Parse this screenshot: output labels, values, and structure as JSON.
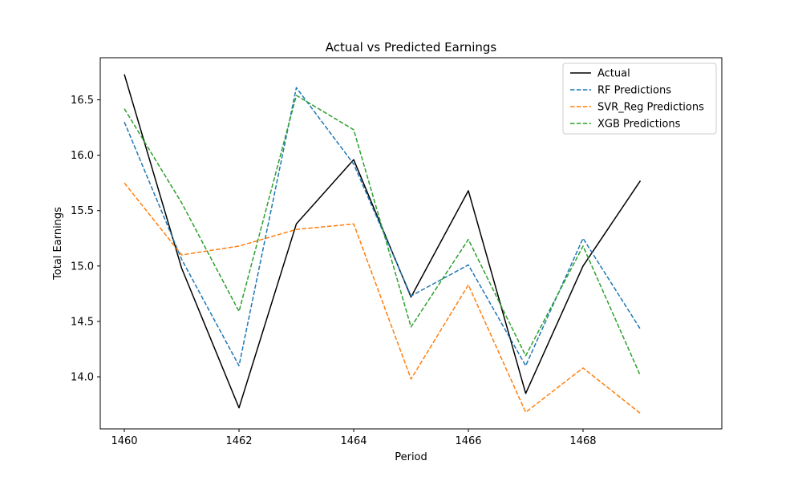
{
  "chart_data": {
    "type": "line",
    "title": "Actual vs Predicted Earnings",
    "xlabel": "Period",
    "ylabel": "Total Earnings",
    "x": [
      1460,
      1461,
      1462,
      1463,
      1464,
      1465,
      1466,
      1467,
      1468,
      1469
    ],
    "xlim": [
      1459.58,
      1470.42
    ],
    "ylim": [
      13.53,
      16.88
    ],
    "xticks": [
      1460,
      1462,
      1464,
      1466,
      1468
    ],
    "yticks": [
      14.0,
      14.5,
      15.0,
      15.5,
      16.0,
      16.5
    ],
    "xtick_labels": [
      "1460",
      "1462",
      "1464",
      "1466",
      "1468"
    ],
    "ytick_labels": [
      "14.0",
      "14.5",
      "15.0",
      "15.5",
      "16.0",
      "16.5"
    ],
    "grid": false,
    "legend_position": "top-right",
    "series": [
      {
        "name": "Actual",
        "color": "#000000",
        "style": "solid",
        "values": [
          16.73,
          14.98,
          13.72,
          15.38,
          15.96,
          14.72,
          15.68,
          13.85,
          15.0,
          15.77
        ]
      },
      {
        "name": "RF Predictions",
        "color": "#1f77b4",
        "style": "dashed",
        "values": [
          16.3,
          15.06,
          14.1,
          16.61,
          15.92,
          14.73,
          15.01,
          14.1,
          15.25,
          14.43
        ]
      },
      {
        "name": "SVR_Reg Predictions",
        "color": "#ff7f0e",
        "style": "dashed",
        "values": [
          15.75,
          15.1,
          15.18,
          15.33,
          15.38,
          13.98,
          14.83,
          13.68,
          14.08,
          13.67
        ]
      },
      {
        "name": "XGB Predictions",
        "color": "#2ca02c",
        "style": "dashed",
        "values": [
          16.42,
          15.57,
          14.59,
          16.54,
          16.23,
          14.45,
          15.24,
          14.19,
          15.18,
          14.01
        ]
      }
    ]
  }
}
